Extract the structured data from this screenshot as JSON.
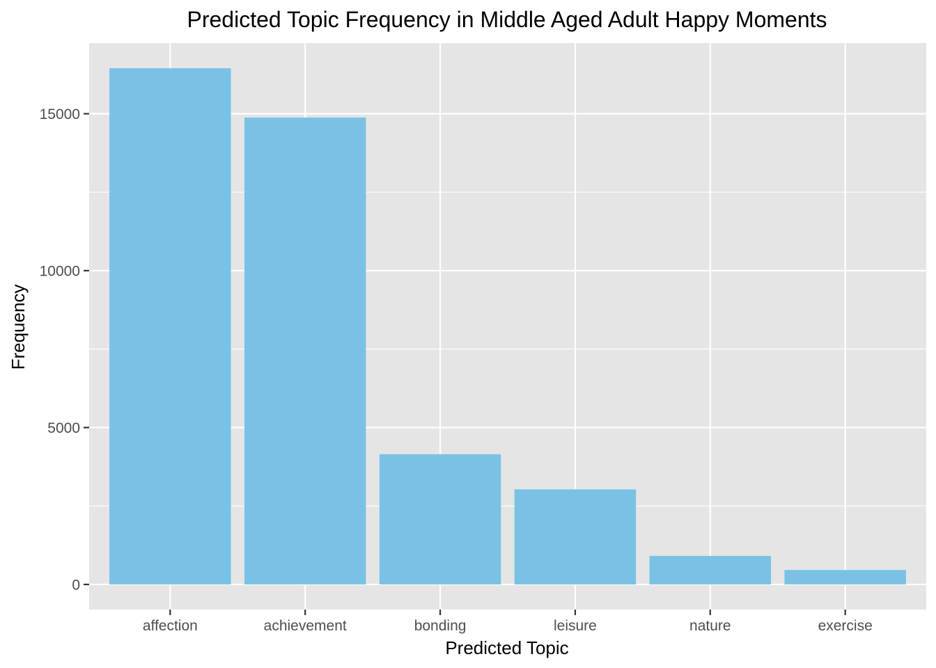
{
  "chart_data": {
    "type": "bar",
    "title": "Predicted Topic Frequency in Middle Aged Adult Happy Moments",
    "xlabel": "Predicted Topic",
    "ylabel": "Frequency",
    "categories": [
      "affection",
      "achievement",
      "bonding",
      "leisure",
      "nature",
      "exercise"
    ],
    "values": [
      16450,
      14880,
      4150,
      3030,
      910,
      460
    ],
    "ylim": [
      -800,
      17250
    ],
    "yticks": [
      0,
      5000,
      10000,
      15000
    ],
    "ytick_labels": [
      "0",
      "5000",
      "10000",
      "15000"
    ],
    "grid": true,
    "legend": "none",
    "colors": {
      "bar": "#7AC2E5",
      "panel_background": "#E5E5E5",
      "grid": "#FFFFFF",
      "tick": "#333333"
    }
  }
}
